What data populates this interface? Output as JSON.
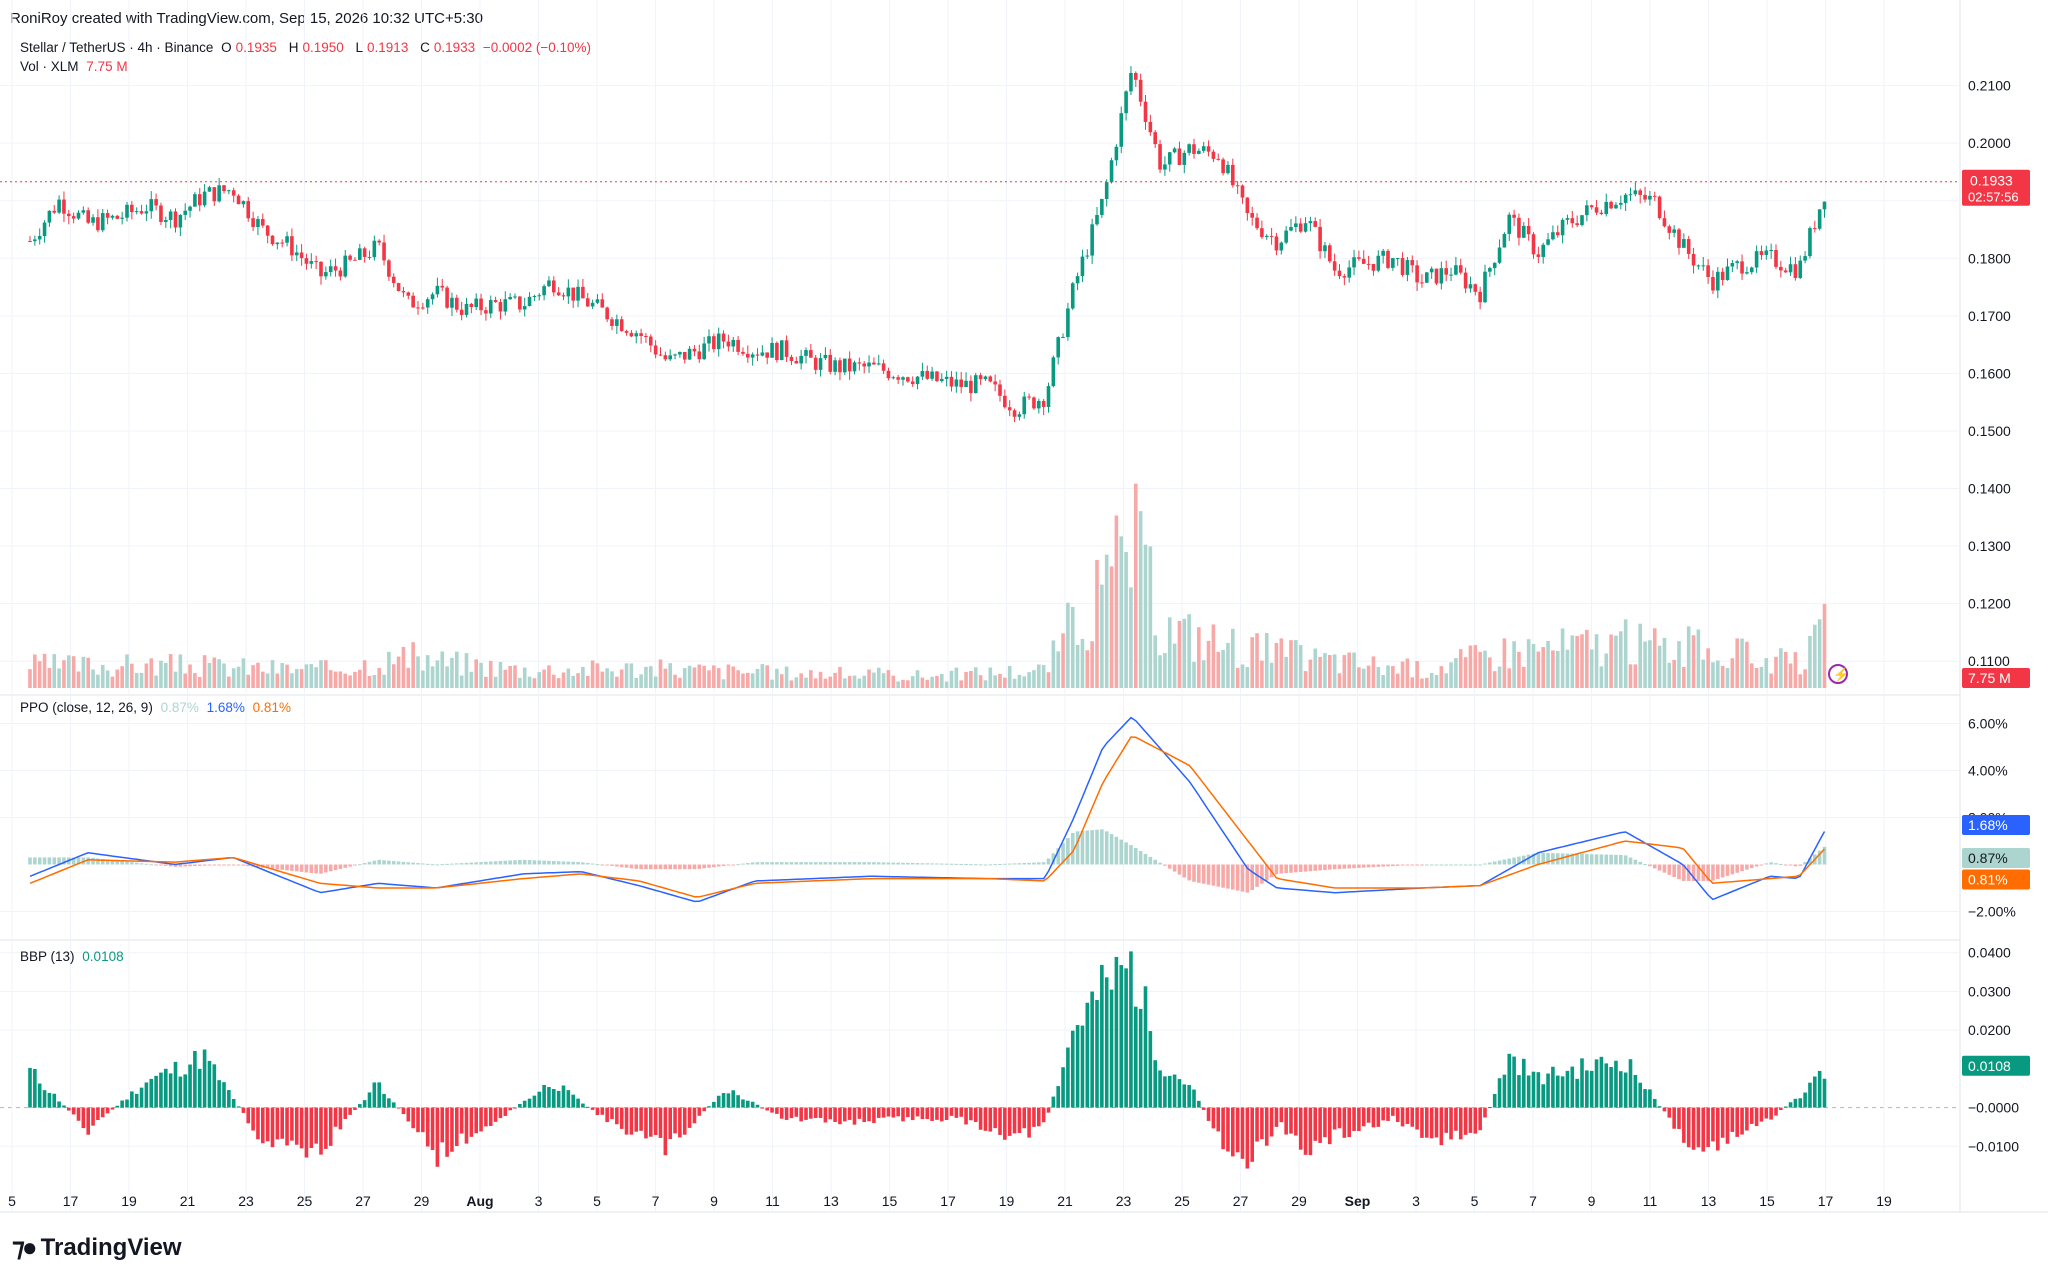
{
  "header": {
    "created_by": "RoniRoy created with TradingView.com, Sep 15, 2026 10:32 UTC+5:30"
  },
  "brand": {
    "name": "TradingView",
    "logo_icon": "tradingview-logo-icon"
  },
  "main_legend": {
    "symbol": "Stellar / TetherUS · 4h · Binance",
    "o_label": "O",
    "o": "0.1935",
    "h_label": "H",
    "h": "0.1950",
    "l_label": "L",
    "l": "0.1913",
    "c_label": "C",
    "c": "0.1933",
    "change": "−0.0002 (−0.10%)"
  },
  "volume_legend": {
    "label": "Vol · XLM",
    "value": "7.75 M"
  },
  "ppo_legend": {
    "label": "PPO (close, 12, 26, 9)",
    "hist": "0.87%",
    "ppo": "1.68%",
    "signal": "0.81%"
  },
  "bbp_legend": {
    "label": "BBP (13)",
    "value": "0.0108"
  },
  "colors": {
    "up": "#089981",
    "down": "#f23645",
    "up_light": "#acd5cf",
    "down_light": "#f7a9a7",
    "ppo_line": "#2962ff",
    "signal_line": "#ff6d00",
    "grid": "#f0f3fa"
  },
  "price_badge": {
    "value": "0.1933",
    "countdown": "02:57:56"
  },
  "volume_badge": {
    "value": "7.75 M"
  },
  "ppo_badges": {
    "ppo": "1.68%",
    "hist": "0.87%",
    "signal": "0.81%"
  },
  "bbp_badge": {
    "value": "0.0108"
  },
  "axes": {
    "price_ticks": [
      "0.2100",
      "0.2000",
      "0.1900",
      "0.1800",
      "0.1700",
      "0.1600",
      "0.1500",
      "0.1400",
      "0.1300",
      "0.1200",
      "0.1100"
    ],
    "ppo_ticks": [
      "6.00%",
      "4.00%",
      "2.00%",
      "−2.00%"
    ],
    "bbp_ticks": [
      "0.0400",
      "0.0300",
      "0.0200",
      "−0.0000",
      "−0.0100"
    ],
    "x_ticks": [
      "5",
      "17",
      "19",
      "21",
      "23",
      "25",
      "27",
      "29",
      "Aug",
      "3",
      "5",
      "7",
      "9",
      "11",
      "13",
      "15",
      "17",
      "19",
      "21",
      "23",
      "25",
      "27",
      "29",
      "Sep",
      "3",
      "5",
      "7",
      "9",
      "11",
      "13",
      "15",
      "17",
      "19"
    ]
  },
  "chart_data": [
    {
      "type": "candlestick",
      "title": "Stellar / TetherUS · 4h · Binance",
      "interval": "4h",
      "ylim": [
        0.105,
        0.22
      ],
      "x_start": "Jul 15",
      "x_end": "Sep 15",
      "close_path": [
        {
          "d": "Jul 15",
          "v": 0.183
        },
        {
          "d": "Jul 16",
          "v": 0.19
        },
        {
          "d": "Jul 17",
          "v": 0.186
        },
        {
          "d": "Jul 18",
          "v": 0.187
        },
        {
          "d": "Jul 19",
          "v": 0.189
        },
        {
          "d": "Jul 20",
          "v": 0.187
        },
        {
          "d": "Jul 21",
          "v": 0.191
        },
        {
          "d": "Jul 22",
          "v": 0.192
        },
        {
          "d": "Jul 23",
          "v": 0.185
        },
        {
          "d": "Jul 24",
          "v": 0.182
        },
        {
          "d": "Jul 25",
          "v": 0.177
        },
        {
          "d": "Jul 26",
          "v": 0.179
        },
        {
          "d": "Jul 27",
          "v": 0.182
        },
        {
          "d": "Jul 28",
          "v": 0.172
        },
        {
          "d": "Jul 29",
          "v": 0.174
        },
        {
          "d": "Jul 30",
          "v": 0.171
        },
        {
          "d": "Jul 31",
          "v": 0.172
        },
        {
          "d": "Aug 1",
          "v": 0.172
        },
        {
          "d": "Aug 2",
          "v": 0.176
        },
        {
          "d": "Aug 3",
          "v": 0.173
        },
        {
          "d": "Aug 4",
          "v": 0.17
        },
        {
          "d": "Aug 5",
          "v": 0.167
        },
        {
          "d": "Aug 6",
          "v": 0.162
        },
        {
          "d": "Aug 7",
          "v": 0.164
        },
        {
          "d": "Aug 8",
          "v": 0.166
        },
        {
          "d": "Aug 9",
          "v": 0.164
        },
        {
          "d": "Aug 10",
          "v": 0.164
        },
        {
          "d": "Aug 11",
          "v": 0.162
        },
        {
          "d": "Aug 12",
          "v": 0.161
        },
        {
          "d": "Aug 13",
          "v": 0.161
        },
        {
          "d": "Aug 14",
          "v": 0.16
        },
        {
          "d": "Aug 15",
          "v": 0.159
        },
        {
          "d": "Aug 16",
          "v": 0.158
        },
        {
          "d": "Aug 17",
          "v": 0.158
        },
        {
          "d": "Aug 18",
          "v": 0.154
        },
        {
          "d": "Aug 19",
          "v": 0.156
        },
        {
          "d": "Aug 20",
          "v": 0.175
        },
        {
          "d": "Aug 21",
          "v": 0.19
        },
        {
          "d": "Aug 22",
          "v": 0.213
        },
        {
          "d": "Aug 23",
          "v": 0.196
        },
        {
          "d": "Aug 24",
          "v": 0.199
        },
        {
          "d": "Aug 25",
          "v": 0.198
        },
        {
          "d": "Aug 26",
          "v": 0.187
        },
        {
          "d": "Aug 27",
          "v": 0.183
        },
        {
          "d": "Aug 28",
          "v": 0.187
        },
        {
          "d": "Aug 29",
          "v": 0.178
        },
        {
          "d": "Aug 30",
          "v": 0.179
        },
        {
          "d": "Aug 31",
          "v": 0.18
        },
        {
          "d": "Sep 1",
          "v": 0.176
        },
        {
          "d": "Sep 2",
          "v": 0.178
        },
        {
          "d": "Sep 3",
          "v": 0.174
        },
        {
          "d": "Sep 4",
          "v": 0.187
        },
        {
          "d": "Sep 5",
          "v": 0.181
        },
        {
          "d": "Sep 6",
          "v": 0.186
        },
        {
          "d": "Sep 7",
          "v": 0.189
        },
        {
          "d": "Sep 8",
          "v": 0.191
        },
        {
          "d": "Sep 9",
          "v": 0.19
        },
        {
          "d": "Sep 10",
          "v": 0.182
        },
        {
          "d": "Sep 11",
          "v": 0.176
        },
        {
          "d": "Sep 12",
          "v": 0.179
        },
        {
          "d": "Sep 13",
          "v": 0.18
        },
        {
          "d": "Sep 14",
          "v": 0.178
        },
        {
          "d": "Sep 15",
          "v": 0.1933
        }
      ],
      "last": {
        "open": 0.1935,
        "high": 0.195,
        "low": 0.1913,
        "close": 0.1933
      }
    },
    {
      "type": "bar",
      "title": "Vol · XLM",
      "last_value": "7.75 M",
      "relative_volume": [
        {
          "d": "Jul 15",
          "v": 0.15
        },
        {
          "d": "Jul 20",
          "v": 0.15
        },
        {
          "d": "Jul 25",
          "v": 0.12
        },
        {
          "d": "Jul 28",
          "v": 0.2
        },
        {
          "d": "Aug 1",
          "v": 0.12
        },
        {
          "d": "Aug 5",
          "v": 0.13
        },
        {
          "d": "Aug 10",
          "v": 0.1
        },
        {
          "d": "Aug 15",
          "v": 0.08
        },
        {
          "d": "Aug 19",
          "v": 0.12
        },
        {
          "d": "Aug 20",
          "v": 0.45
        },
        {
          "d": "Aug 21",
          "v": 0.6
        },
        {
          "d": "Aug 22",
          "v": 1.0
        },
        {
          "d": "Aug 23",
          "v": 0.4
        },
        {
          "d": "Aug 25",
          "v": 0.3
        },
        {
          "d": "Aug 28",
          "v": 0.2
        },
        {
          "d": "Sep 1",
          "v": 0.12
        },
        {
          "d": "Sep 4",
          "v": 0.25
        },
        {
          "d": "Sep 8",
          "v": 0.3
        },
        {
          "d": "Sep 11",
          "v": 0.25
        },
        {
          "d": "Sep 14",
          "v": 0.15
        },
        {
          "d": "Sep 15",
          "v": 0.4
        }
      ]
    },
    {
      "type": "line",
      "title": "PPO (close, 12, 26, 9)",
      "ylim": [
        -3.0,
        7.0
      ],
      "series": [
        {
          "name": "PPO",
          "color": "#2962ff",
          "points": [
            {
              "d": "Jul 15",
              "v": -0.5
            },
            {
              "d": "Jul 17",
              "v": 0.5
            },
            {
              "d": "Jul 20",
              "v": 0.0
            },
            {
              "d": "Jul 22",
              "v": 0.3
            },
            {
              "d": "Jul 25",
              "v": -1.2
            },
            {
              "d": "Jul 27",
              "v": -0.8
            },
            {
              "d": "Jul 29",
              "v": -1.0
            },
            {
              "d": "Aug 1",
              "v": -0.4
            },
            {
              "d": "Aug 3",
              "v": -0.3
            },
            {
              "d": "Aug 5",
              "v": -0.9
            },
            {
              "d": "Aug 7",
              "v": -1.6
            },
            {
              "d": "Aug 9",
              "v": -0.7
            },
            {
              "d": "Aug 13",
              "v": -0.5
            },
            {
              "d": "Aug 17",
              "v": -0.6
            },
            {
              "d": "Aug 19",
              "v": -0.6
            },
            {
              "d": "Aug 20",
              "v": 2.0
            },
            {
              "d": "Aug 21",
              "v": 5.0
            },
            {
              "d": "Aug 22",
              "v": 6.3
            },
            {
              "d": "Aug 24",
              "v": 3.5
            },
            {
              "d": "Aug 26",
              "v": -0.2
            },
            {
              "d": "Aug 27",
              "v": -1.0
            },
            {
              "d": "Aug 29",
              "v": -1.2
            },
            {
              "d": "Sep 1",
              "v": -1.0
            },
            {
              "d": "Sep 3",
              "v": -0.9
            },
            {
              "d": "Sep 5",
              "v": 0.5
            },
            {
              "d": "Sep 8",
              "v": 1.4
            },
            {
              "d": "Sep 10",
              "v": 0.0
            },
            {
              "d": "Sep 11",
              "v": -1.5
            },
            {
              "d": "Sep 13",
              "v": -0.5
            },
            {
              "d": "Sep 14",
              "v": -0.6
            },
            {
              "d": "Sep 15",
              "v": 1.68
            }
          ]
        },
        {
          "name": "Signal",
          "color": "#ff6d00",
          "points": [
            {
              "d": "Jul 15",
              "v": -0.8
            },
            {
              "d": "Jul 17",
              "v": 0.2
            },
            {
              "d": "Jul 20",
              "v": 0.1
            },
            {
              "d": "Jul 22",
              "v": 0.3
            },
            {
              "d": "Jul 25",
              "v": -0.8
            },
            {
              "d": "Jul 27",
              "v": -1.0
            },
            {
              "d": "Jul 29",
              "v": -1.0
            },
            {
              "d": "Aug 1",
              "v": -0.6
            },
            {
              "d": "Aug 3",
              "v": -0.4
            },
            {
              "d": "Aug 5",
              "v": -0.7
            },
            {
              "d": "Aug 7",
              "v": -1.4
            },
            {
              "d": "Aug 9",
              "v": -0.8
            },
            {
              "d": "Aug 13",
              "v": -0.6
            },
            {
              "d": "Aug 17",
              "v": -0.6
            },
            {
              "d": "Aug 19",
              "v": -0.7
            },
            {
              "d": "Aug 20",
              "v": 0.6
            },
            {
              "d": "Aug 21",
              "v": 3.5
            },
            {
              "d": "Aug 22",
              "v": 5.5
            },
            {
              "d": "Aug 24",
              "v": 4.2
            },
            {
              "d": "Aug 26",
              "v": 1.0
            },
            {
              "d": "Aug 27",
              "v": -0.6
            },
            {
              "d": "Aug 29",
              "v": -1.0
            },
            {
              "d": "Sep 1",
              "v": -1.0
            },
            {
              "d": "Sep 3",
              "v": -0.9
            },
            {
              "d": "Sep 5",
              "v": 0.0
            },
            {
              "d": "Sep 8",
              "v": 1.0
            },
            {
              "d": "Sep 10",
              "v": 0.7
            },
            {
              "d": "Sep 11",
              "v": -0.8
            },
            {
              "d": "Sep 13",
              "v": -0.6
            },
            {
              "d": "Sep 14",
              "v": -0.5
            },
            {
              "d": "Sep 15",
              "v": 0.81
            }
          ]
        }
      ],
      "histogram_last": 0.87
    },
    {
      "type": "bar",
      "title": "BBP (13)",
      "ylim": [
        -0.02,
        0.042
      ],
      "points": [
        {
          "d": "Jul 15",
          "v": 0.01
        },
        {
          "d": "Jul 17",
          "v": -0.006
        },
        {
          "d": "Jul 19",
          "v": 0.007
        },
        {
          "d": "Jul 21",
          "v": 0.014
        },
        {
          "d": "Jul 23",
          "v": -0.009
        },
        {
          "d": "Jul 25",
          "v": -0.012
        },
        {
          "d": "Jul 27",
          "v": 0.007
        },
        {
          "d": "Jul 29",
          "v": -0.013
        },
        {
          "d": "Jul 31",
          "v": -0.004
        },
        {
          "d": "Aug 2",
          "v": 0.007
        },
        {
          "d": "Aug 4",
          "v": -0.004
        },
        {
          "d": "Aug 6",
          "v": -0.011
        },
        {
          "d": "Aug 8",
          "v": 0.005
        },
        {
          "d": "Aug 10",
          "v": -0.003
        },
        {
          "d": "Aug 12",
          "v": -0.004
        },
        {
          "d": "Aug 14",
          "v": -0.003
        },
        {
          "d": "Aug 16",
          "v": -0.003
        },
        {
          "d": "Aug 18",
          "v": -0.008
        },
        {
          "d": "Aug 19",
          "v": -0.005
        },
        {
          "d": "Aug 20",
          "v": 0.022
        },
        {
          "d": "Aug 21",
          "v": 0.032
        },
        {
          "d": "Aug 22",
          "v": 0.039
        },
        {
          "d": "Aug 23",
          "v": 0.012
        },
        {
          "d": "Aug 24",
          "v": 0.006
        },
        {
          "d": "Aug 25",
          "v": -0.008
        },
        {
          "d": "Aug 26",
          "v": -0.016
        },
        {
          "d": "Aug 27",
          "v": -0.004
        },
        {
          "d": "Aug 28",
          "v": -0.012
        },
        {
          "d": "Aug 29",
          "v": -0.008
        },
        {
          "d": "Aug 31",
          "v": -0.003
        },
        {
          "d": "Sep 1",
          "v": -0.009
        },
        {
          "d": "Sep 3",
          "v": -0.007
        },
        {
          "d": "Sep 4",
          "v": 0.014
        },
        {
          "d": "Sep 5",
          "v": 0.008
        },
        {
          "d": "Sep 6",
          "v": 0.01
        },
        {
          "d": "Sep 8",
          "v": 0.013
        },
        {
          "d": "Sep 10",
          "v": -0.008
        },
        {
          "d": "Sep 11",
          "v": -0.012
        },
        {
          "d": "Sep 12",
          "v": -0.007
        },
        {
          "d": "Sep 13",
          "v": -0.003
        },
        {
          "d": "Sep 14",
          "v": 0.003
        },
        {
          "d": "Sep 15",
          "v": 0.0108
        }
      ]
    }
  ]
}
